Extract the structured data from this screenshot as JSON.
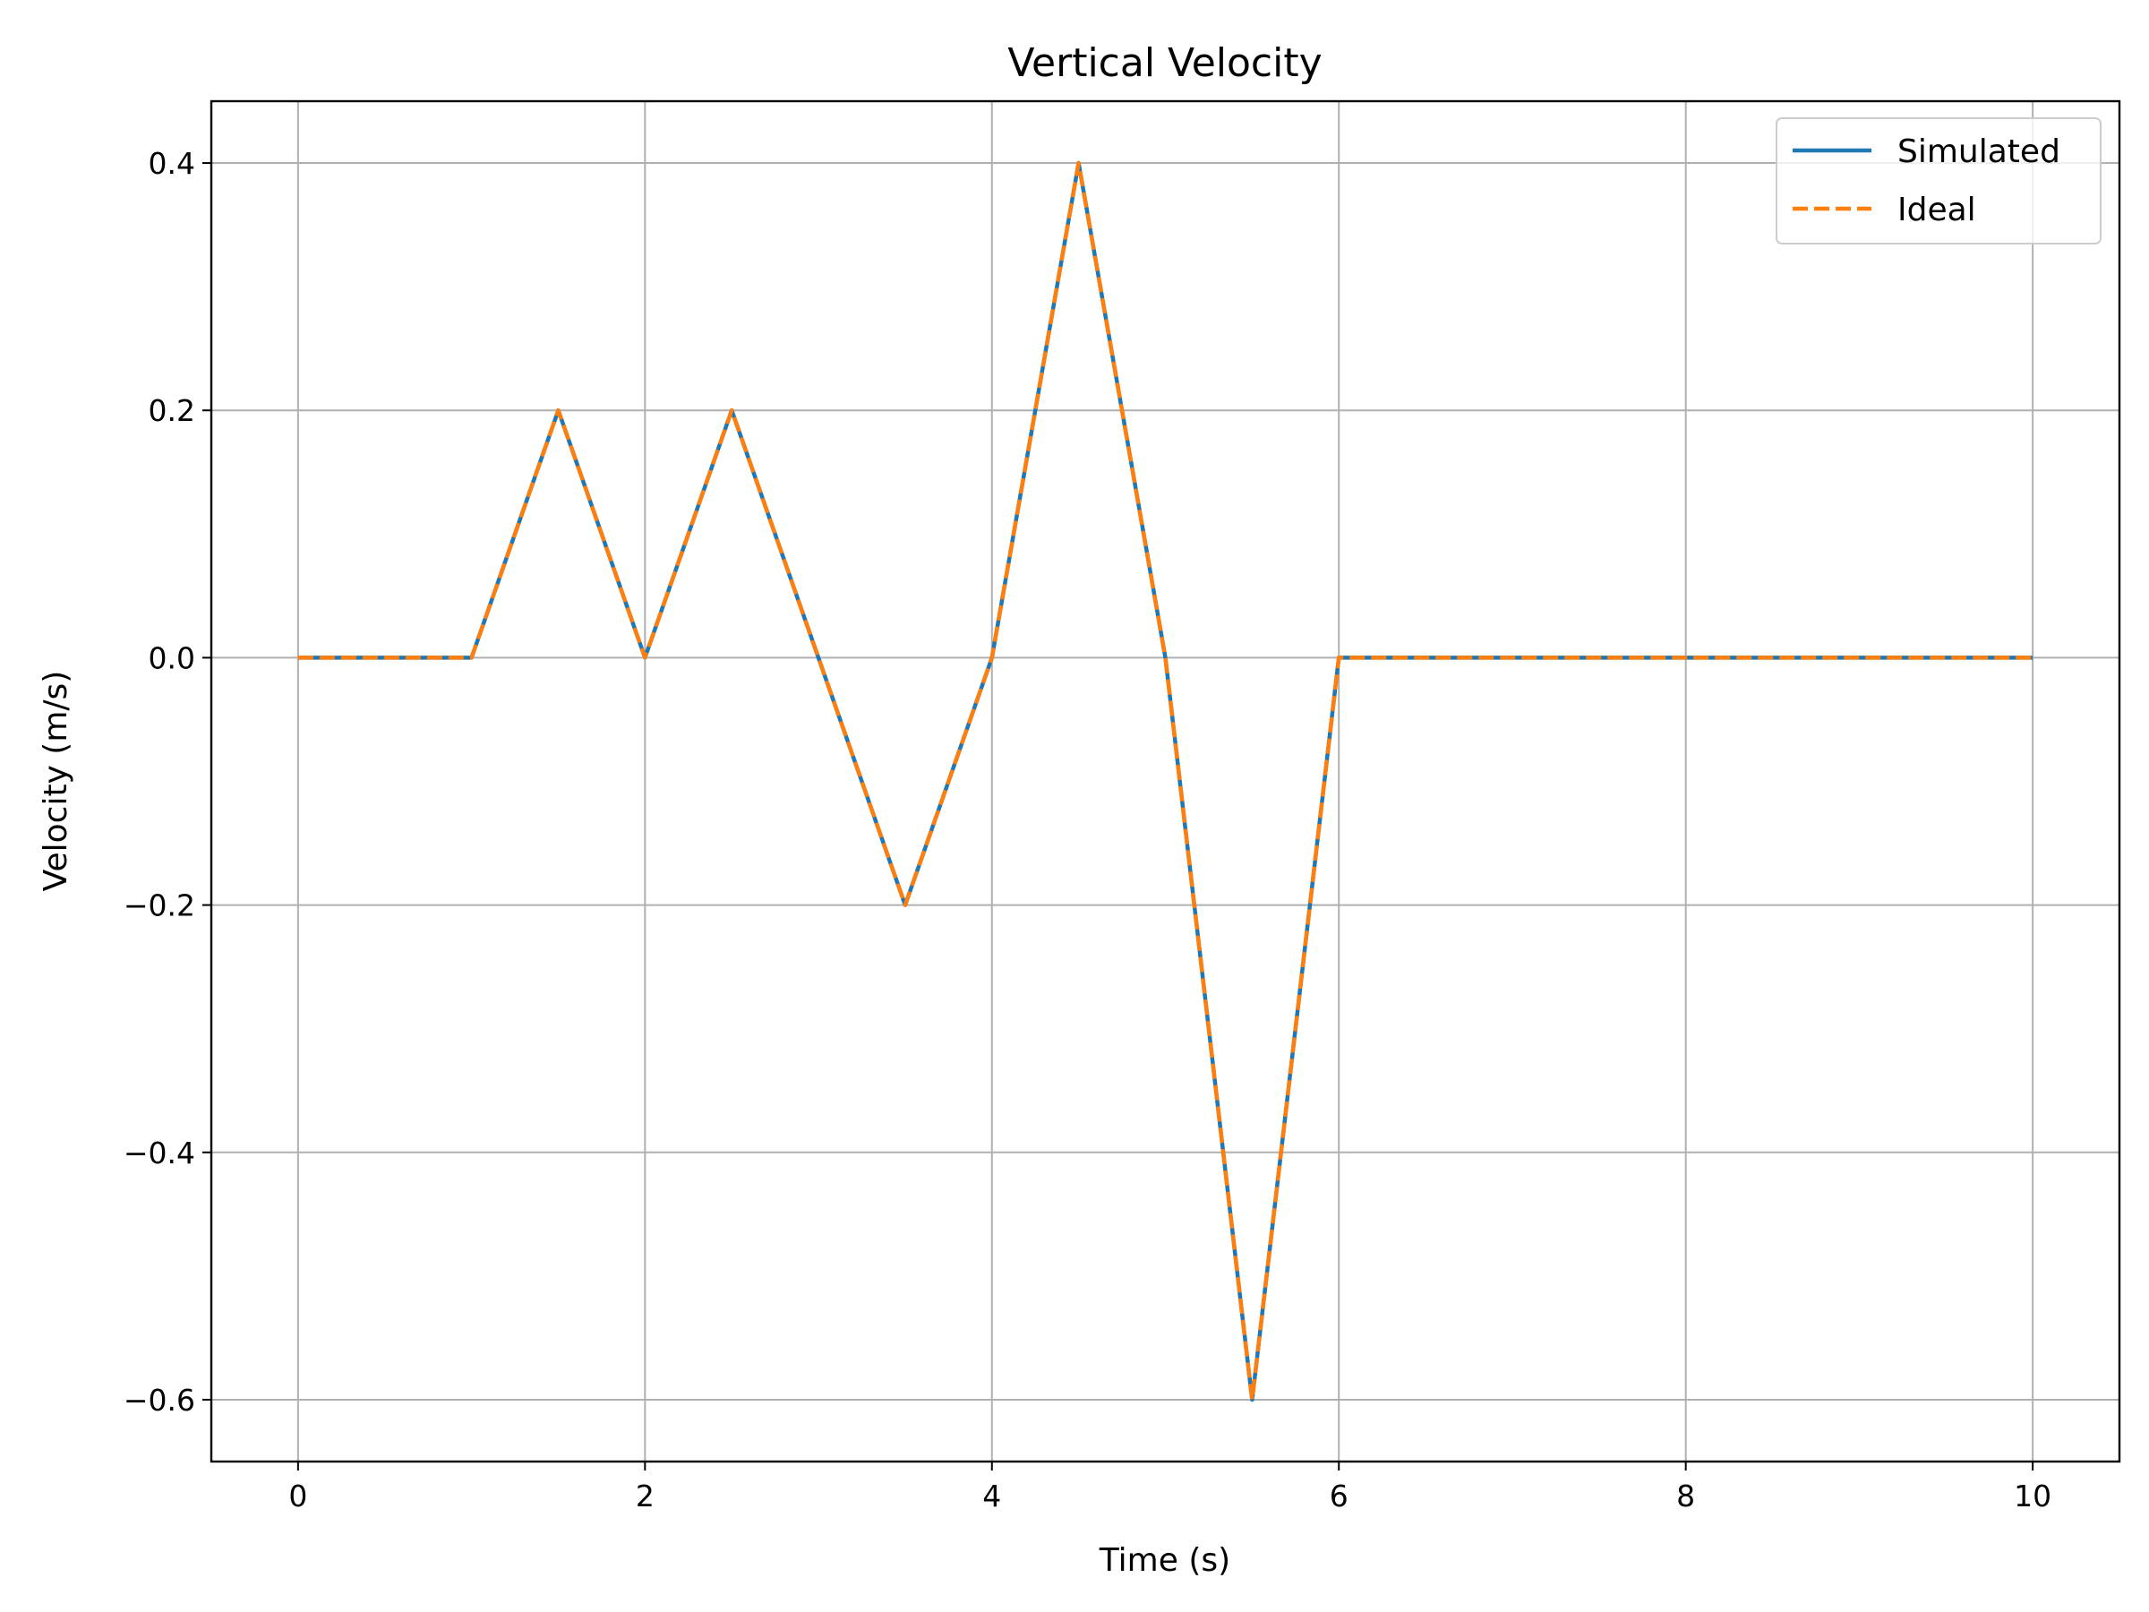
{
  "chart_data": {
    "type": "line",
    "title": "Vertical Velocity",
    "xlabel": "Time (s)",
    "ylabel": "Velocity (m/s)",
    "xlim": [
      -0.5,
      10.5
    ],
    "ylim": [
      -0.65,
      0.45
    ],
    "xticks": [
      0,
      2,
      4,
      6,
      8,
      10
    ],
    "xtick_labels": [
      "0",
      "2",
      "4",
      "6",
      "8",
      "10"
    ],
    "yticks": [
      -0.6,
      -0.4,
      -0.2,
      0.0,
      0.2,
      0.4
    ],
    "ytick_labels": [
      "−0.6",
      "−0.4",
      "−0.2",
      "0.0",
      "0.2",
      "0.4"
    ],
    "grid": true,
    "legend_position": "top-right",
    "x": [
      0,
      1,
      1.5,
      2,
      2.5,
      3,
      3.5,
      4,
      4.5,
      5,
      5.5,
      6,
      7,
      8,
      9,
      10
    ],
    "series": [
      {
        "name": "Simulated",
        "color": "#1f77b4",
        "style": "solid",
        "values": [
          0.0,
          0.0,
          0.2,
          0.0,
          0.2,
          0.0,
          -0.2,
          0.0,
          0.4,
          0.0,
          -0.6,
          0.0,
          0.0,
          0.0,
          0.0,
          0.0
        ]
      },
      {
        "name": "Ideal",
        "color": "#ff7f0e",
        "style": "dashed",
        "values": [
          0.0,
          0.0,
          0.2,
          0.0,
          0.2,
          0.0,
          -0.2,
          0.0,
          0.4,
          0.0,
          -0.6,
          0.0,
          0.0,
          0.0,
          0.0,
          0.0
        ]
      }
    ]
  }
}
